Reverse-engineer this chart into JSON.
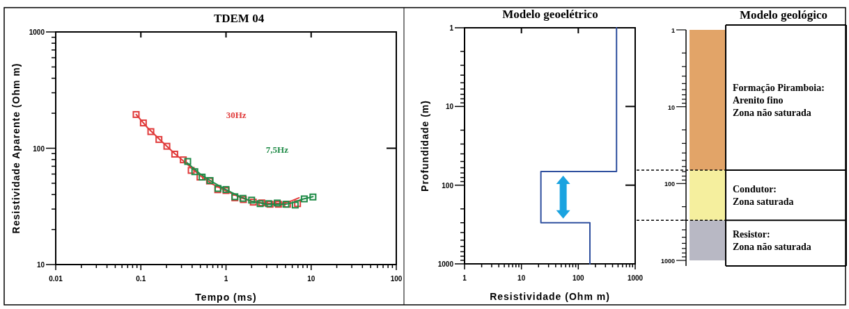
{
  "chart_data": [
    {
      "type": "scatter",
      "title": "TDEM 04",
      "xlabel": "Tempo (ms)",
      "ylabel": "Resistividade Aparente (Ohm m)",
      "log": "xy",
      "marker": "square",
      "xlim": [
        0.01,
        100
      ],
      "ylim": [
        10,
        1000
      ],
      "xticks": [
        0.01,
        {
          "value": 0.02,
          "label": null
        },
        {
          "value": 0.03,
          "label": null
        },
        {
          "value": 0.04,
          "label": null
        },
        {
          "value": 0.05,
          "label": null
        },
        {
          "value": 0.06,
          "label": null
        },
        {
          "value": 0.07,
          "label": null
        },
        {
          "value": 0.08,
          "label": null
        },
        {
          "value": 0.09,
          "label": null
        },
        0.1,
        {
          "value": 0.2,
          "label": null
        },
        {
          "value": 0.3,
          "label": null
        },
        {
          "value": 0.4,
          "label": null
        },
        {
          "value": 0.5,
          "label": null
        },
        {
          "value": 0.6,
          "label": null
        },
        {
          "value": 0.7,
          "label": null
        },
        {
          "value": 0.8,
          "label": null
        },
        {
          "value": 0.9,
          "label": null
        },
        1,
        {
          "value": 2,
          "label": null
        },
        {
          "value": 3,
          "label": null
        },
        {
          "value": 4,
          "label": null
        },
        {
          "value": 5,
          "label": null
        },
        {
          "value": 6,
          "label": null
        },
        {
          "value": 7,
          "label": null
        },
        {
          "value": 8,
          "label": null
        },
        {
          "value": 9,
          "label": null
        },
        10,
        {
          "value": 20,
          "label": null
        },
        {
          "value": 30,
          "label": null
        },
        {
          "value": 40,
          "label": null
        },
        {
          "value": 50,
          "label": null
        },
        {
          "value": 60,
          "label": null
        },
        {
          "value": 70,
          "label": null
        },
        {
          "value": 80,
          "label": null
        },
        {
          "value": 90,
          "label": null
        },
        100
      ],
      "yticks": [
        10,
        {
          "value": 20,
          "label": null
        },
        {
          "value": 30,
          "label": null
        },
        {
          "value": 40,
          "label": null
        },
        {
          "value": 50,
          "label": null
        },
        {
          "value": 60,
          "label": null
        },
        {
          "value": 70,
          "label": null
        },
        {
          "value": 80,
          "label": null
        },
        {
          "value": 90,
          "label": null
        },
        100,
        {
          "value": 200,
          "label": null
        },
        {
          "value": 300,
          "label": null
        },
        {
          "value": 400,
          "label": null
        },
        {
          "value": 500,
          "label": null
        },
        {
          "value": 600,
          "label": null
        },
        {
          "value": 700,
          "label": null
        },
        {
          "value": 800,
          "label": null
        },
        {
          "value": 900,
          "label": null
        },
        1000
      ],
      "series": [
        {
          "name": "30Hz",
          "color": "#e03a3a",
          "x": [
            0.088,
            0.107,
            0.131,
            0.163,
            0.202,
            0.25,
            0.315,
            0.39,
            0.495,
            0.64,
            0.8,
            1.0,
            1.27,
            1.6,
            2.09,
            2.63,
            3.29,
            4.13,
            5.27,
            6.92
          ],
          "values": [
            195,
            165,
            139,
            119,
            104,
            89,
            79.5,
            64.5,
            56.5,
            52.3,
            44,
            43.3,
            37.5,
            36.2,
            34.4,
            33.9,
            33,
            33,
            33,
            33.4
          ]
        },
        {
          "type": "line",
          "marker": "none",
          "color": "#e03a3a",
          "x": [
            0.088,
            0.12,
            0.17,
            0.25,
            0.35,
            0.5,
            0.7,
            1,
            1.5,
            2,
            3,
            4,
            5,
            6,
            7.2
          ],
          "values": [
            195,
            150,
            117,
            90,
            73,
            58,
            49,
            43,
            37.5,
            35,
            33.5,
            33.5,
            34,
            35.5,
            37.5
          ]
        },
        {
          "name": "7,5Hz",
          "color": "#1e8a46",
          "x": [
            0.355,
            0.43,
            0.524,
            0.65,
            0.805,
            1.0,
            1.27,
            1.58,
            2.0,
            2.52,
            3.17,
            4.0,
            5.06,
            6.5,
            8.3,
            10.5
          ],
          "values": [
            77,
            62.9,
            56.5,
            52.8,
            45.1,
            44.2,
            38.3,
            37.1,
            35.8,
            33.4,
            33.4,
            33.8,
            33,
            32.5,
            36.7,
            38.1
          ]
        },
        {
          "type": "line",
          "marker": "none",
          "color": "#1e8a46",
          "x": [
            0.35,
            0.5,
            0.7,
            1,
            1.5,
            2,
            3,
            4,
            5,
            6,
            8,
            10.5
          ],
          "values": [
            75,
            60,
            51,
            44,
            38,
            35,
            33,
            33,
            33,
            34,
            36.5,
            38.3
          ]
        }
      ]
    },
    {
      "type": "line",
      "title": "Modelo geoelétrico",
      "xlabel": "Resistividade (Ohm m)",
      "ylabel": "Profundidade (m)",
      "log": "xy",
      "xlim": [
        1,
        1000
      ],
      "ylim": [
        1000,
        1
      ],
      "xticks": [
        1,
        {
          "value": 2,
          "label": null
        },
        {
          "value": 3,
          "label": null
        },
        {
          "value": 4,
          "label": null
        },
        {
          "value": 5,
          "label": null
        },
        {
          "value": 6,
          "label": null
        },
        {
          "value": 7,
          "label": null
        },
        {
          "value": 8,
          "label": null
        },
        {
          "value": 9,
          "label": null
        },
        10,
        {
          "value": 20,
          "label": null
        },
        {
          "value": 30,
          "label": null
        },
        {
          "value": 40,
          "label": null
        },
        {
          "value": 50,
          "label": null
        },
        {
          "value": 60,
          "label": null
        },
        {
          "value": 70,
          "label": null
        },
        {
          "value": 80,
          "label": null
        },
        {
          "value": 90,
          "label": null
        },
        100,
        {
          "value": 200,
          "label": null
        },
        {
          "value": 300,
          "label": null
        },
        {
          "value": 400,
          "label": null
        },
        {
          "value": 500,
          "label": null
        },
        {
          "value": 600,
          "label": null
        },
        {
          "value": 700,
          "label": null
        },
        {
          "value": 800,
          "label": null
        },
        {
          "value": 900,
          "label": null
        },
        1000
      ],
      "yticks": [
        1,
        {
          "value": 2,
          "label": null
        },
        {
          "value": 3,
          "label": null
        },
        {
          "value": 4,
          "label": null
        },
        {
          "value": 5,
          "label": null
        },
        {
          "value": 6,
          "label": null
        },
        {
          "value": 7,
          "label": null
        },
        {
          "value": 8,
          "label": null
        },
        {
          "value": 9,
          "label": null
        },
        10,
        {
          "value": 20,
          "label": null
        },
        {
          "value": 30,
          "label": null
        },
        {
          "value": 40,
          "label": null
        },
        {
          "value": 50,
          "label": null
        },
        {
          "value": 60,
          "label": null
        },
        {
          "value": 70,
          "label": null
        },
        {
          "value": 80,
          "label": null
        },
        {
          "value": 90,
          "label": null
        },
        100,
        {
          "value": 200,
          "label": null
        },
        {
          "value": 300,
          "label": null
        },
        {
          "value": 400,
          "label": null
        },
        {
          "value": 500,
          "label": null
        },
        {
          "value": 600,
          "label": null
        },
        {
          "value": 700,
          "label": null
        },
        {
          "value": 800,
          "label": null
        },
        {
          "value": 900,
          "label": null
        },
        1000
      ],
      "series": [
        {
          "color": "#2e4f9e",
          "x": [
            470,
            470,
            22,
            22,
            160,
            160
          ],
          "values": [
            1,
            67,
            67,
            300,
            300,
            1000
          ]
        }
      ]
    },
    {
      "type": "bar",
      "title": "Modelo geológico",
      "log": "y",
      "ylim": [
        1000,
        1
      ],
      "categories": [
        null
      ],
      "yticks": [
        1,
        {
          "value": 2,
          "label": null
        },
        {
          "value": 3,
          "label": null
        },
        {
          "value": 4,
          "label": null
        },
        {
          "value": 5,
          "label": null
        },
        {
          "value": 6,
          "label": null
        },
        {
          "value": 7,
          "label": null
        },
        {
          "value": 8,
          "label": null
        },
        {
          "value": 9,
          "label": null
        },
        10,
        {
          "value": 20,
          "label": null
        },
        {
          "value": 30,
          "label": null
        },
        {
          "value": 40,
          "label": null
        },
        {
          "value": 50,
          "label": null
        },
        {
          "value": 60,
          "label": null
        },
        {
          "value": 70,
          "label": null
        },
        {
          "value": 80,
          "label": null
        },
        {
          "value": 90,
          "label": null
        },
        100,
        {
          "value": 200,
          "label": null
        },
        {
          "value": 300,
          "label": null
        },
        {
          "value": 400,
          "label": null
        },
        {
          "value": 500,
          "label": null
        },
        {
          "value": 600,
          "label": null
        },
        {
          "value": 700,
          "label": null
        },
        {
          "value": 800,
          "label": null
        },
        {
          "value": 900,
          "label": null
        },
        1000
      ],
      "series": [
        {
          "color": "#e2a468",
          "base": [
            1
          ],
          "values": [
            66
          ]
        },
        {
          "color": "#f5ef9e",
          "base": [
            67
          ],
          "values": [
            233
          ]
        },
        {
          "color": "#b8b8c4",
          "base": [
            300
          ],
          "values": [
            700
          ]
        }
      ],
      "ref_lines": [
        {
          "axis": "y",
          "value": 67,
          "line_style": "dashed"
        },
        {
          "axis": "y",
          "value": 300,
          "line_style": "dashed"
        }
      ],
      "annotations": [
        "Formação Piramboia:\nArenito fino\nZona não saturada",
        "Condutor:\nZona saturada",
        "Resistor:\nZona não saturada"
      ]
    }
  ]
}
